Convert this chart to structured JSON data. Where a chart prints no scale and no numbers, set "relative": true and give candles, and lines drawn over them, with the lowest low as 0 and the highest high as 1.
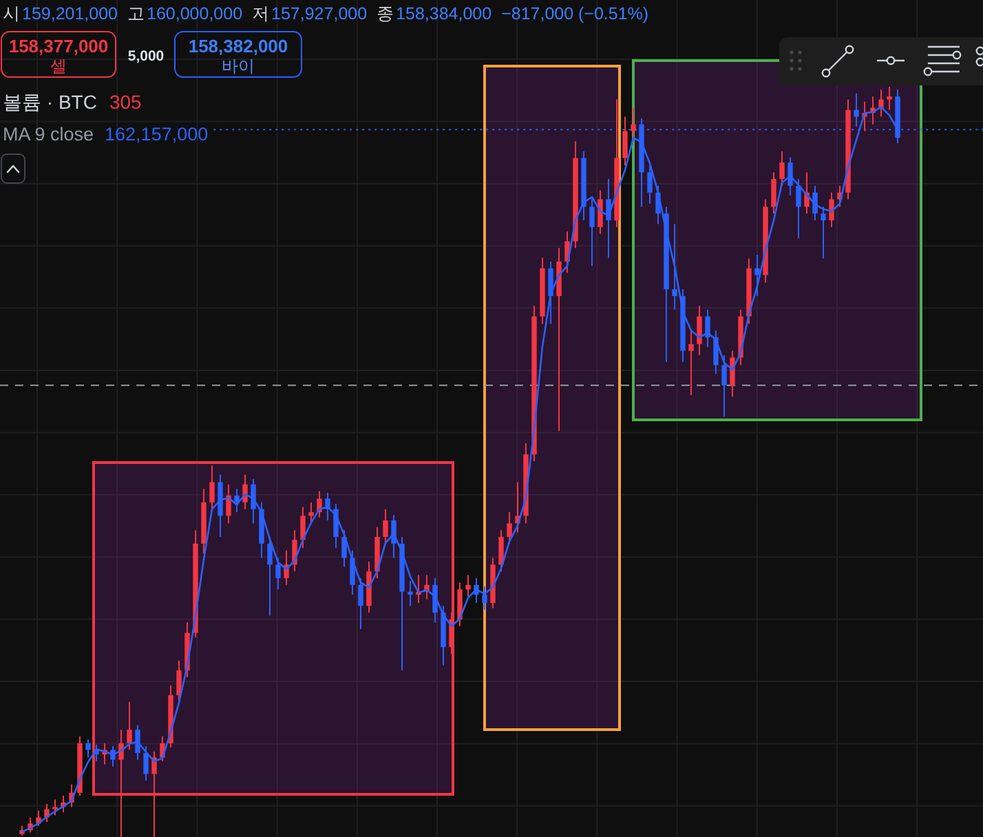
{
  "chart_data": {
    "type": "candlestick",
    "relative": true,
    "grid": true,
    "legend": "top left",
    "categories": [
      null,
      null,
      null,
      null,
      null,
      null,
      null,
      null,
      null,
      null,
      null,
      null,
      null,
      null,
      null,
      null,
      null,
      null,
      null,
      null,
      null,
      null,
      null,
      null,
      null,
      null,
      null,
      null,
      null,
      null,
      null,
      null,
      null,
      null,
      null,
      null,
      null,
      null,
      null,
      null,
      null,
      null,
      null,
      null,
      null,
      null,
      null,
      null,
      null,
      null,
      null,
      null,
      null,
      null,
      null,
      null,
      null,
      null,
      null,
      null,
      null,
      null,
      null,
      null,
      null,
      null,
      null,
      null,
      null,
      null,
      null,
      null,
      null,
      null,
      null,
      null,
      null,
      null,
      null,
      null,
      null,
      null,
      null,
      null,
      null,
      null,
      null,
      null,
      null,
      null,
      null,
      null,
      null,
      null,
      null,
      null,
      null,
      null,
      null,
      null,
      null,
      null,
      null,
      null,
      null,
      null,
      null
    ],
    "ohlc": [
      [
        0.004,
        0.015,
        0.002,
        0.009
      ],
      [
        0.009,
        0.026,
        0.006,
        0.018
      ],
      [
        0.018,
        0.035,
        0.015,
        0.026
      ],
      [
        0.026,
        0.044,
        0.02,
        0.037
      ],
      [
        0.037,
        0.05,
        0.029,
        0.04
      ],
      [
        0.04,
        0.055,
        0.033,
        0.046
      ],
      [
        0.046,
        0.07,
        0.04,
        0.059
      ],
      [
        0.059,
        0.134,
        0.055,
        0.125
      ],
      [
        0.125,
        0.13,
        0.106,
        0.116
      ],
      [
        0.116,
        0.123,
        0.101,
        0.11
      ],
      [
        0.11,
        0.125,
        0.097,
        0.116
      ],
      [
        0.116,
        0.121,
        0.094,
        0.103
      ],
      [
        0.103,
        0.143,
        0,
        0.125
      ],
      [
        0.125,
        0.18,
        0.116,
        0.143
      ],
      [
        0.143,
        0.149,
        0.103,
        0.112
      ],
      [
        0.112,
        0.121,
        0.075,
        0.084
      ],
      [
        0.084,
        0.114,
        0,
        0.106
      ],
      [
        0.106,
        0.134,
        0.101,
        0.125
      ],
      [
        0.125,
        0.202,
        0.119,
        0.189
      ],
      [
        0.189,
        0.235,
        0.18,
        0.222
      ],
      [
        0.222,
        0.286,
        0.213,
        0.272
      ],
      [
        0.272,
        0.409,
        0.266,
        0.391
      ],
      [
        0.391,
        0.464,
        0.378,
        0.446
      ],
      [
        0.446,
        0.495,
        0.433,
        0.473
      ],
      [
        0.473,
        0.483,
        0.4,
        0.428
      ],
      [
        0.428,
        0.47,
        0.418,
        0.455
      ],
      [
        0.455,
        0.464,
        0.433,
        0.446
      ],
      [
        0.446,
        0.483,
        0.437,
        0.47
      ],
      [
        0.47,
        0.477,
        0.418,
        0.437
      ],
      [
        0.437,
        0.446,
        0.372,
        0.391
      ],
      [
        0.391,
        0.4,
        0.295,
        0.363
      ],
      [
        0.363,
        0.372,
        0.33,
        0.345
      ],
      [
        0.345,
        0.382,
        0.336,
        0.363
      ],
      [
        0.363,
        0.409,
        0.354,
        0.396
      ],
      [
        0.396,
        0.44,
        0.385,
        0.428
      ],
      [
        0.428,
        0.446,
        0.418,
        0.433
      ],
      [
        0.433,
        0.461,
        0.426,
        0.451
      ],
      [
        0.451,
        0.459,
        0.422,
        0.437
      ],
      [
        0.437,
        0.444,
        0.385,
        0.4
      ],
      [
        0.4,
        0.409,
        0.36,
        0.372
      ],
      [
        0.372,
        0.382,
        0.323,
        0.336
      ],
      [
        0.336,
        0.345,
        0.277,
        0.308
      ],
      [
        0.308,
        0.367,
        0.299,
        0.354
      ],
      [
        0.354,
        0.413,
        0.345,
        0.4
      ],
      [
        0.4,
        0.437,
        0.391,
        0.422
      ],
      [
        0.422,
        0.429,
        0.372,
        0.391
      ],
      [
        0.391,
        0.4,
        0.222,
        0.327
      ],
      [
        0.327,
        0.341,
        0.308,
        0.323
      ],
      [
        0.323,
        0.349,
        0.312,
        0.327
      ],
      [
        0.327,
        0.349,
        0.317,
        0.336
      ],
      [
        0.336,
        0.345,
        0.286,
        0.299
      ],
      [
        0.299,
        0.308,
        0.229,
        0.253
      ],
      [
        0.253,
        0.299,
        0.244,
        0.29
      ],
      [
        0.29,
        0.339,
        0.281,
        0.33
      ],
      [
        0.33,
        0.349,
        0.321,
        0.336
      ],
      [
        0.336,
        0.345,
        0.312,
        0.323
      ],
      [
        0.323,
        0.334,
        0.303,
        0.312
      ],
      [
        0.312,
        0.372,
        0.305,
        0.363
      ],
      [
        0.363,
        0.409,
        0.354,
        0.4
      ],
      [
        0.4,
        0.433,
        0.391,
        0.418
      ],
      [
        0.418,
        0.473,
        0.406,
        0.428
      ],
      [
        0.428,
        0.525,
        0.418,
        0.51
      ],
      [
        0.51,
        0.708,
        0.501,
        0.694
      ],
      [
        0.694,
        0.772,
        0.684,
        0.758
      ],
      [
        0.758,
        0.767,
        0.684,
        0.721
      ],
      [
        0.721,
        0.785,
        0.541,
        0.767
      ],
      [
        0.767,
        0.807,
        0.752,
        0.794
      ],
      [
        0.794,
        0.927,
        0.785,
        0.905
      ],
      [
        0.905,
        0.914,
        0.822,
        0.84
      ],
      [
        0.84,
        0.85,
        0.761,
        0.813
      ],
      [
        0.813,
        0.862,
        0.804,
        0.85
      ],
      [
        0.85,
        0.877,
        0.772,
        0.822
      ],
      [
        0.822,
        0.983,
        0.813,
        0.905
      ],
      [
        0.905,
        0.96,
        0.895,
        0.941
      ],
      [
        0.941,
        0.972,
        0.928,
        0.95
      ],
      [
        0.95,
        0.958,
        0.84,
        0.886
      ],
      [
        0.886,
        0.899,
        0.844,
        0.859
      ],
      [
        0.859,
        0.868,
        0.817,
        0.831
      ],
      [
        0.831,
        0.84,
        0.633,
        0.73
      ],
      [
        0.73,
        0.817,
        0.703,
        0.721
      ],
      [
        0.721,
        0.73,
        0.633,
        0.648
      ],
      [
        0.648,
        0.675,
        0.589,
        0.657
      ],
      [
        0.657,
        0.708,
        0.642,
        0.694
      ],
      [
        0.694,
        0.703,
        0.653,
        0.666
      ],
      [
        0.666,
        0.675,
        0.617,
        0.629
      ],
      [
        0.629,
        0.642,
        0.56,
        0.602
      ],
      [
        0.602,
        0.648,
        0.587,
        0.639
      ],
      [
        0.639,
        0.703,
        0.629,
        0.694
      ],
      [
        0.694,
        0.771,
        0.684,
        0.758
      ],
      [
        0.758,
        0.776,
        0.721,
        0.749
      ],
      [
        0.749,
        0.85,
        0.739,
        0.84
      ],
      [
        0.84,
        0.886,
        0.831,
        0.877
      ],
      [
        0.877,
        0.914,
        0.868,
        0.899
      ],
      [
        0.899,
        0.906,
        0.855,
        0.868
      ],
      [
        0.868,
        0.877,
        0.798,
        0.84
      ],
      [
        0.84,
        0.886,
        0.831,
        0.859
      ],
      [
        0.859,
        0.868,
        0.822,
        0.831
      ],
      [
        0.831,
        0.84,
        0.771,
        0.822
      ],
      [
        0.822,
        0.859,
        0.813,
        0.85
      ],
      [
        0.85,
        0.868,
        0.84,
        0.859
      ],
      [
        0.859,
        0.983,
        0.85,
        0.969
      ],
      [
        0.969,
        0.991,
        0.947,
        0.96
      ],
      [
        0.96,
        0.98,
        0.941,
        0.965
      ],
      [
        0.965,
        0.987,
        0.95,
        0.972
      ],
      [
        0.972,
        0.996,
        0.96,
        0.983
      ],
      [
        0.983,
        1,
        0.969,
        0.987
      ],
      [
        0.987,
        0.996,
        0.925,
        0.932
      ]
    ],
    "colors": [
      "#f23645",
      "#f23645",
      "#f23645",
      "#f23645",
      "#f23645",
      "#f23645",
      "#f23645",
      "#f23645",
      "#2962ff",
      "#2962ff",
      "#f23645",
      "#2962ff",
      "#f23645",
      "#f23645",
      "#2962ff",
      "#2962ff",
      "#f23645",
      "#f23645",
      "#f23645",
      "#f23645",
      "#f23645",
      "#f23645",
      "#f23645",
      "#f23645",
      "#2962ff",
      "#f23645",
      "#2962ff",
      "#f23645",
      "#2962ff",
      "#2962ff",
      "#2962ff",
      "#2962ff",
      "#f23645",
      "#f23645",
      "#f23645",
      "#f23645",
      "#f23645",
      "#2962ff",
      "#2962ff",
      "#2962ff",
      "#2962ff",
      "#2962ff",
      "#f23645",
      "#f23645",
      "#f23645",
      "#2962ff",
      "#2962ff",
      "#2962ff",
      "#f23645",
      "#f23645",
      "#2962ff",
      "#2962ff",
      "#f23645",
      "#f23645",
      "#f23645",
      "#2962ff",
      "#2962ff",
      "#f23645",
      "#f23645",
      "#f23645",
      "#f23645",
      "#f23645",
      "#f23645",
      "#f23645",
      "#2962ff",
      "#f23645",
      "#f23645",
      "#f23645",
      "#2962ff",
      "#2962ff",
      "#f23645",
      "#2962ff",
      "#f23645",
      "#f23645",
      "#f23645",
      "#2962ff",
      "#2962ff",
      "#2962ff",
      "#2962ff",
      "#2962ff",
      "#2962ff",
      "#f23645",
      "#f23645",
      "#2962ff",
      "#2962ff",
      "#2962ff",
      "#f23645",
      "#f23645",
      "#f23645",
      "#2962ff",
      "#f23645",
      "#f23645",
      "#f23645",
      "#2962ff",
      "#2962ff",
      "#f23645",
      "#2962ff",
      "#2962ff",
      "#f23645",
      "#f23645",
      "#f23645",
      "#2962ff",
      "#f23645",
      "#f23645",
      "#f23645",
      "#f23645",
      "#2962ff"
    ],
    "series": [
      {
        "name": "MA 9 close",
        "type": "line",
        "color": "#2962ff",
        "values": [
          0.007,
          0.012,
          0.018,
          0.027,
          0.034,
          0.041,
          0.048,
          0.077,
          0.1,
          0.117,
          0.114,
          0.11,
          0.115,
          0.124,
          0.127,
          0.113,
          0.101,
          0.105,
          0.14,
          0.179,
          0.228,
          0.295,
          0.37,
          0.437,
          0.449,
          0.452,
          0.443,
          0.457,
          0.451,
          0.433,
          0.397,
          0.366,
          0.357,
          0.368,
          0.396,
          0.419,
          0.437,
          0.44,
          0.429,
          0.403,
          0.369,
          0.339,
          0.333,
          0.354,
          0.392,
          0.404,
          0.38,
          0.347,
          0.326,
          0.329,
          0.321,
          0.296,
          0.281,
          0.291,
          0.319,
          0.33,
          0.324,
          0.333,
          0.358,
          0.394,
          0.415,
          0.452,
          0.544,
          0.654,
          0.724,
          0.749,
          0.761,
          0.822,
          0.846,
          0.853,
          0.834,
          0.828,
          0.859,
          0.889,
          0.932,
          0.926,
          0.898,
          0.859,
          0.807,
          0.761,
          0.7,
          0.675,
          0.666,
          0.672,
          0.663,
          0.632,
          0.623,
          0.645,
          0.697,
          0.734,
          0.782,
          0.822,
          0.872,
          0.881,
          0.869,
          0.856,
          0.843,
          0.837,
          0.834,
          0.844,
          0.893,
          0.929,
          0.965,
          0.966,
          0.973,
          0.962,
          0.943
        ]
      }
    ],
    "ref_lines": [
      {
        "axis": "y",
        "value": 0.943,
        "color": "#2962ff",
        "line_style": "dotted"
      },
      {
        "axis": "y",
        "value": 0.602,
        "color": "#9598a1",
        "line_style": "dashed"
      }
    ],
    "annotations": [
      "시",
      "159,201,000",
      "고",
      "160,000,000",
      "저",
      "157,927,000",
      "종",
      "158,384,000",
      "−817,000 (−0.51%)",
      "158,377,000",
      "셀",
      "5,000",
      "158,382,000",
      "바이",
      "볼륨 · BTC",
      "305",
      "162,157,000"
    ]
  }
}
